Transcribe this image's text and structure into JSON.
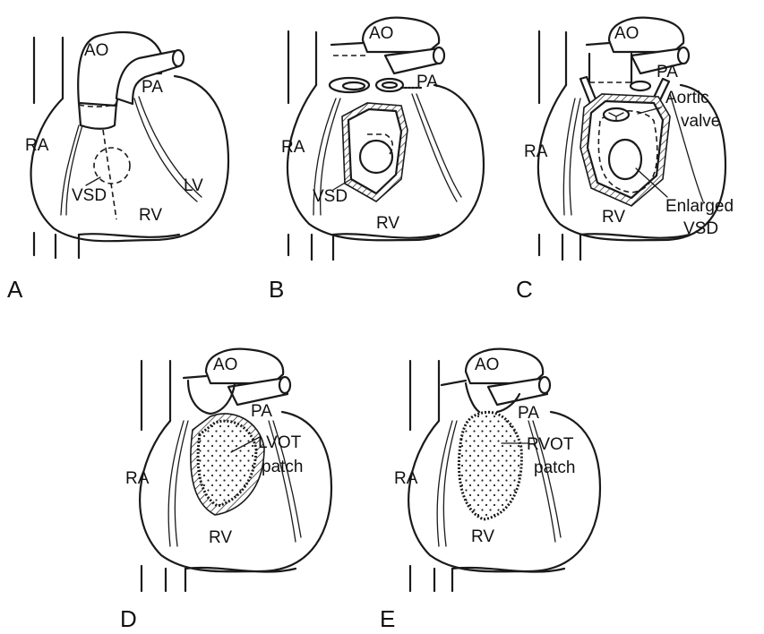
{
  "panels": {
    "A": {
      "letter": "A",
      "ao": "AO",
      "pa": "PA",
      "ra": "RA",
      "lv": "LV",
      "vsd": "VSD",
      "rv": "RV"
    },
    "B": {
      "letter": "B",
      "ao": "AO",
      "pa": "PA",
      "ra": "RA",
      "vsd": "VSD",
      "rv": "RV"
    },
    "C": {
      "letter": "C",
      "ao": "AO",
      "pa": "PA",
      "ra": "RA",
      "aortic_valve_line1": "Aortic",
      "aortic_valve_line2": "valve",
      "rv": "RV",
      "enlarged_vsd_line1": "Enlarged",
      "enlarged_vsd_line2": "VSD"
    },
    "D": {
      "letter": "D",
      "ao": "AO",
      "pa": "PA",
      "ra": "RA",
      "patch_line1": "LVOT",
      "patch_line2": "patch",
      "rv": "RV"
    },
    "E": {
      "letter": "E",
      "ao": "AO",
      "pa": "PA",
      "ra": "RA",
      "patch_line1": "RVOT",
      "patch_line2": "patch",
      "rv": "RV"
    }
  }
}
